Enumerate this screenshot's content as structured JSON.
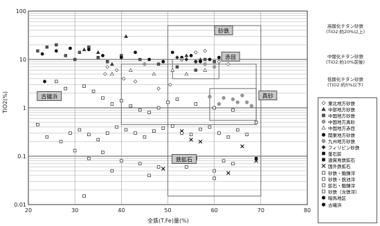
{
  "chart_data": {
    "type": "scatter",
    "xlabel": "全鉄(T.Fe)量(%)",
    "ylabel": "TiO2(%)",
    "xlim": [
      20,
      80
    ],
    "ylim": [
      0.01,
      100
    ],
    "yscale": "log",
    "x_ticks": [
      "20",
      "30",
      "40",
      "50",
      "60",
      "70",
      "80"
    ],
    "y_ticks": [
      "0.01",
      "0.1",
      "1",
      "10",
      "100"
    ],
    "grid": true,
    "legend_position": "right",
    "annotations": [
      {
        "text": "砂鉄",
        "x": 62,
        "y": 40
      },
      {
        "text": "赤目",
        "x": 63.5,
        "y": 11.5
      },
      {
        "text": "真砂",
        "x": 71.5,
        "y": 1.8
      },
      {
        "text": "鉄鉱石",
        "x": 53.5,
        "y": 0.088
      },
      {
        "text": "古磯浜",
        "x": 24.5,
        "y": 1.75
      }
    ],
    "regions": [
      {
        "name": "砂鉄",
        "x": [
          50,
          70
        ],
        "y": [
          0.015,
          50
        ]
      },
      {
        "name": "赤目",
        "x": [
          51,
          61
        ],
        "y": [
          4,
          10
        ]
      },
      {
        "name": "真砂",
        "x": [
          59,
          69
        ],
        "y": [
          0.55,
          2.5
        ]
      },
      {
        "name": "ref",
        "x": [
          40,
          69
        ],
        "y": [
          0.45,
          8
        ]
      }
    ],
    "side_labels": [
      {
        "title": "高酸化チタン砂鉄",
        "sub": "(TiO2:約20%以上)"
      },
      {
        "title": "中酸化チタン砂鉄",
        "sub": "(TiO2:約10%前後)"
      },
      {
        "title": "低酸化チタン砂鉄",
        "sub": "(TiO2:約5%以下)"
      }
    ],
    "legend": [
      {
        "name": "東北地方砂鉄",
        "marker": "diamond-open"
      },
      {
        "name": "中部地方砂鉄",
        "marker": "triangle-filled"
      },
      {
        "name": "中国地方砂鉄",
        "marker": "square-filled"
      },
      {
        "name": "中国地方真砂",
        "marker": "circle-gray"
      },
      {
        "name": "中国地方赤目",
        "marker": "triangle-open"
      },
      {
        "name": "関東地方砂鉄",
        "marker": "circle-filled"
      },
      {
        "name": "九州地方砂鉄",
        "marker": "circle-gray"
      },
      {
        "name": "フィリピン砂鉄",
        "marker": "diamond-filled"
      },
      {
        "name": "釜石鉱",
        "marker": "square-black"
      },
      {
        "name": "遠賀鳥鉄鉱石",
        "marker": "square-black"
      },
      {
        "name": "国外鉄鉱石",
        "marker": "cross"
      },
      {
        "name": "砂鉄・鍛錬滓",
        "marker": "square-open"
      },
      {
        "name": "砂鉄・銑池滓",
        "marker": "square-open"
      },
      {
        "name": "鉱石・鍛錬滓",
        "marker": "square-open"
      },
      {
        "name": "砂鉄（含鉄滓）",
        "marker": "square-open"
      },
      {
        "name": "暗馬地区",
        "marker": "circle-filled"
      },
      {
        "name": "古磯浜",
        "marker": "circle-filled"
      }
    ],
    "series": [
      {
        "name": "東北地方砂鉄",
        "marker": "diamond-open",
        "x": [
          37,
          39,
          40.5,
          43,
          48,
          50.5,
          56,
          58,
          61,
          63,
          64,
          36.5
        ],
        "y": [
          7,
          6,
          4,
          3.5,
          2.5,
          3,
          14,
          15,
          9,
          8,
          12,
          5
        ]
      },
      {
        "name": "中部地方砂鉄",
        "marker": "triangle-filled",
        "x": [
          32,
          35,
          38,
          41,
          54,
          57
        ],
        "y": [
          16,
          14,
          8,
          30,
          12,
          10
        ]
      },
      {
        "name": "中国地方砂鉄",
        "marker": "square-filled",
        "x": [
          22,
          24,
          26,
          28,
          30,
          31,
          33,
          35,
          37,
          40,
          44,
          48,
          52,
          56,
          58,
          60,
          62
        ],
        "y": [
          15,
          18,
          20,
          12,
          10,
          14,
          18,
          11,
          9,
          12,
          10,
          8,
          7,
          6,
          10,
          9,
          11
        ]
      },
      {
        "name": "中国地方真砂",
        "marker": "circle-gray",
        "x": [
          59,
          61,
          62,
          64,
          65,
          66,
          67,
          68
        ],
        "y": [
          1.7,
          1.2,
          1.6,
          1.5,
          1.3,
          1.8,
          1.3,
          1.1
        ]
      },
      {
        "name": "中国地方赤目",
        "marker": "triangle-open",
        "x": [
          38,
          42,
          47,
          51,
          54,
          58
        ],
        "y": [
          5,
          6,
          5,
          6,
          5,
          6
        ]
      },
      {
        "name": "関東地方砂鉄",
        "marker": "circle-filled",
        "x": [
          23,
          26,
          29,
          33,
          36,
          40,
          43,
          46,
          49,
          51,
          53,
          55,
          57,
          59,
          61,
          63
        ],
        "y": [
          13,
          15,
          17,
          16,
          12,
          11,
          14,
          10,
          9,
          14,
          11,
          12,
          9,
          10,
          11,
          10
        ]
      },
      {
        "name": "九州地方砂鉄",
        "marker": "circle-gray",
        "x": [
          45,
          53,
          56,
          58,
          60
        ],
        "y": [
          8,
          10,
          9,
          8,
          7
        ]
      },
      {
        "name": "フィリピン砂鉄",
        "marker": "diamond-filled",
        "x": [
          52,
          54,
          56
        ],
        "y": [
          11,
          10,
          9
        ]
      },
      {
        "name": "国外鉄鉱石",
        "marker": "cross",
        "x": [
          49,
          53,
          55,
          57,
          63,
          66,
          69
        ],
        "y": [
          0.055,
          0.33,
          0.22,
          0.2,
          0.045,
          0.16,
          0.08
        ]
      },
      {
        "name": "砂鉄・鍛錬滓",
        "marker": "square-open",
        "x": [
          22,
          24,
          27,
          29,
          31,
          33,
          35,
          37,
          39,
          41,
          43,
          45,
          47,
          49,
          51,
          53,
          55,
          57,
          59,
          61,
          63,
          65,
          67,
          69
        ],
        "y": [
          0.45,
          0.25,
          0.2,
          0.3,
          0.35,
          0.28,
          0.22,
          0.3,
          0.4,
          0.35,
          0.3,
          0.25,
          0.33,
          0.38,
          0.42,
          0.3,
          0.28,
          0.36,
          0.4,
          0.3,
          0.25,
          0.35,
          0.28,
          0.5
        ]
      },
      {
        "name": "砂鉄・銑池滓",
        "marker": "square-open",
        "x": [
          26,
          28,
          32,
          34,
          36,
          38,
          40,
          42,
          44,
          46,
          48,
          50,
          52,
          56,
          60,
          64
        ],
        "y": [
          3.5,
          2.5,
          2.8,
          2.2,
          1.6,
          1.2,
          1.4,
          1.1,
          0.9,
          0.8,
          1,
          1.3,
          1.5,
          1.2,
          1,
          0.9
        ]
      },
      {
        "name": "鉱石・鍛錬滓",
        "marker": "square-open",
        "x": [
          30,
          33,
          36,
          40,
          44,
          48,
          52,
          56,
          60,
          62,
          64
        ],
        "y": [
          0.13,
          0.09,
          0.12,
          0.08,
          0.07,
          0.06,
          0.1,
          0.09,
          0.05,
          0.08,
          0.07
        ]
      },
      {
        "name": "砂鉄（含鉄滓）",
        "marker": "square-open",
        "x": [
          32,
          38,
          46,
          54,
          60
        ],
        "y": [
          0.015,
          0.05,
          0.04,
          0.06,
          0.035
        ]
      },
      {
        "name": "釜石鉱",
        "marker": "square-black",
        "x": [
          69
        ],
        "y": [
          0.09
        ]
      },
      {
        "name": "古磯浜",
        "marker": "circle-filled",
        "x": [
          23.5
        ],
        "y": [
          3.5
        ]
      }
    ]
  }
}
